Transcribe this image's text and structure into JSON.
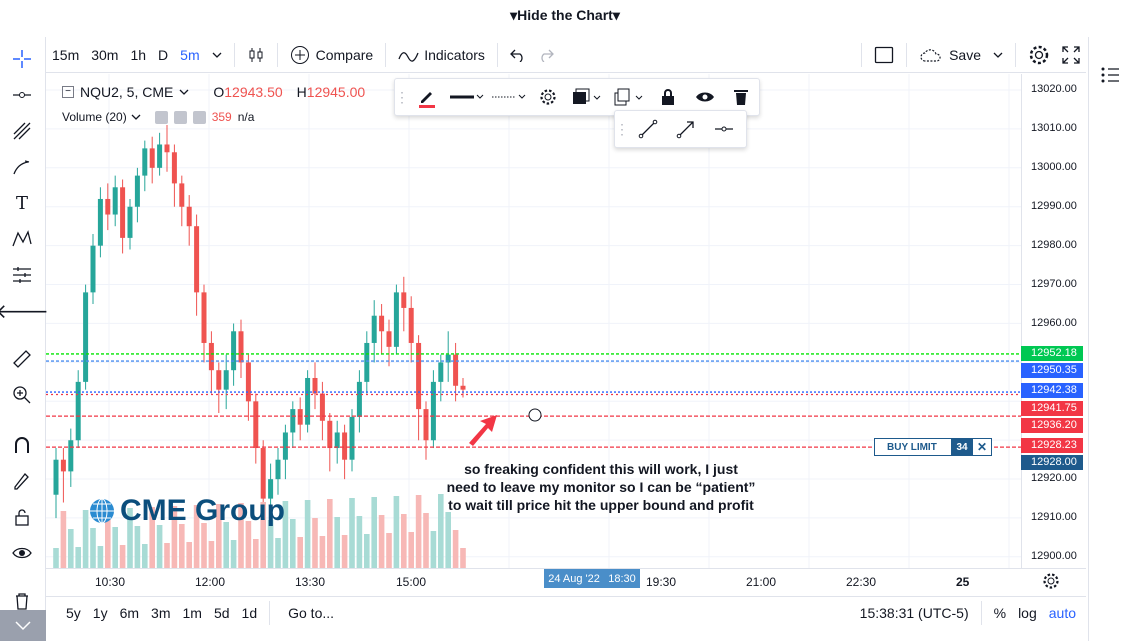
{
  "topbar": {
    "hide_chart": "▾Hide the Chart▾"
  },
  "header": {
    "intervals": [
      "15m",
      "30m",
      "1h",
      "D",
      "5m"
    ],
    "active_interval": "5m",
    "compare_label": "Compare",
    "indicators_label": "Indicators",
    "save_label": "Save"
  },
  "legend": {
    "symbol": "NQU2, 5, CME",
    "open_prefix": "O",
    "open": "12943.50",
    "high_prefix": "H",
    "high": "12945.00",
    "volume_label": "Volume (20)",
    "volume_value": "359",
    "volume_na": "n/a"
  },
  "price_axis": {
    "ticks": [
      "13020.00",
      "13010.00",
      "13000.00",
      "12990.00",
      "12980.00",
      "12970.00",
      "12960.00",
      "12920.00",
      "12910.00",
      "12900.00"
    ],
    "labels": [
      {
        "value": "12952.18",
        "color": "#00c853"
      },
      {
        "value": "12950.35",
        "color": "#2962ff"
      },
      {
        "value": "12942.38",
        "color": "#2962ff"
      },
      {
        "value": "12941.75",
        "color": "#f23645"
      },
      {
        "value": "12936.20",
        "color": "#f23645"
      },
      {
        "value": "12928.23",
        "color": "#f23645"
      },
      {
        "value": "12928.00",
        "color": "#1e5a8c"
      }
    ]
  },
  "time_axis": {
    "labels": [
      "10:30",
      "12:00",
      "13:30",
      "15:00",
      "19:30",
      "21:00",
      "22:30",
      "25"
    ],
    "cursor_date": "24 Aug '22",
    "cursor_time": "18:30"
  },
  "buy_limit": {
    "label": "BUY LIMIT",
    "qty": "34"
  },
  "annotation": "so freaking confident this will work, I just need to leave my monitor so I can be “patient” to wait till price hit the upper bound and profit",
  "watermark": "CME Group",
  "bottom_bar": {
    "ranges": [
      "5y",
      "1y",
      "6m",
      "3m",
      "1m",
      "5d",
      "1d"
    ],
    "goto": "Go to...",
    "clock": "15:38:31 (UTC-5)",
    "percent": "%",
    "log": "log",
    "auto": "auto"
  },
  "colors": {
    "up": "#26a69a",
    "down": "#ef5350",
    "accent": "#2962ff"
  }
}
